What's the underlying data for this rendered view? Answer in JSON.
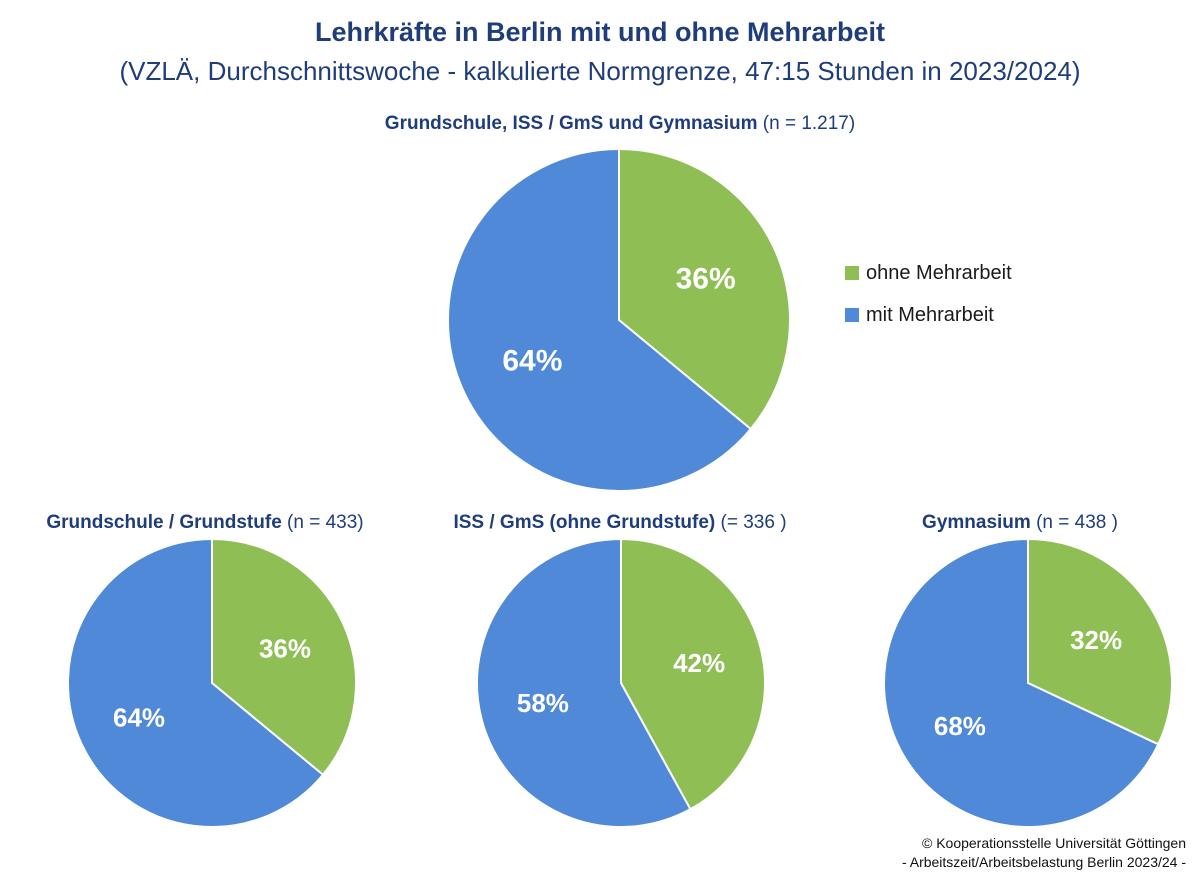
{
  "header": {
    "title": "Lehrkräfte in Berlin mit und ohne Mehrarbeit",
    "subtitle": "(VZLÄ, Durchschnittswoche - kalkulierte Normgrenze, 47:15 Stunden in 2023/2024)"
  },
  "colors": {
    "ohne": "#8fbf54",
    "mit": "#5089d8",
    "title": "#1f3d7a"
  },
  "legend": [
    {
      "label": "ohne Mehrarbeit",
      "color": "#8fbf54"
    },
    {
      "label": "mit Mehrarbeit",
      "color": "#5089d8"
    }
  ],
  "chart_data": [
    {
      "type": "pie",
      "title": "Grundschule, ISS / GmS und Gymnasium",
      "n_label": "(n = 1.217)",
      "slices": [
        {
          "name": "ohne Mehrarbeit",
          "value": 36,
          "label": "36%"
        },
        {
          "name": "mit Mehrarbeit",
          "value": 64,
          "label": "64%"
        }
      ]
    },
    {
      "type": "pie",
      "title": "Grundschule / Grundstufe",
      "n_label": "(n = 433)",
      "slices": [
        {
          "name": "ohne Mehrarbeit",
          "value": 36,
          "label": "36%"
        },
        {
          "name": "mit Mehrarbeit",
          "value": 64,
          "label": "64%"
        }
      ]
    },
    {
      "type": "pie",
      "title": "ISS / GmS (ohne Grundstufe)",
      "n_label": "(= 336 )",
      "slices": [
        {
          "name": "ohne Mehrarbeit",
          "value": 42,
          "label": "42%"
        },
        {
          "name": "mit Mehrarbeit",
          "value": 58,
          "label": "58%"
        }
      ]
    },
    {
      "type": "pie",
      "title": "Gymnasium",
      "n_label": "(n = 438 )",
      "slices": [
        {
          "name": "ohne Mehrarbeit",
          "value": 32,
          "label": "32%"
        },
        {
          "name": "mit Mehrarbeit",
          "value": 68,
          "label": "68%"
        }
      ]
    }
  ],
  "footer": {
    "line1": "© Kooperationsstelle Universität Göttingen",
    "line2": "- Arbeitszeit/Arbeitsbelastung Berlin 2023/24 -"
  }
}
